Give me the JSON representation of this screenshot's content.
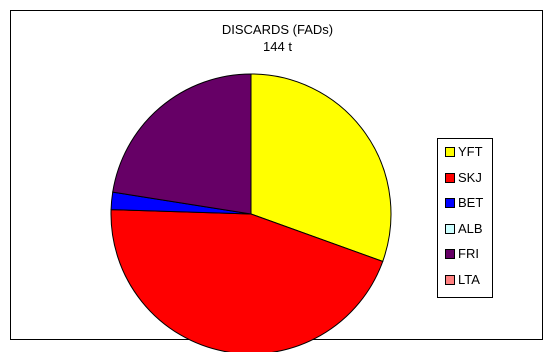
{
  "chart_data": {
    "type": "pie",
    "title": "DISCARDS (FADs)",
    "subtitle": "144 t",
    "legend_position": "right",
    "slices": [
      {
        "label": "YFT",
        "value": 30.5,
        "color": "#ffff00"
      },
      {
        "label": "SKJ",
        "value": 45.0,
        "color": "#ff0000"
      },
      {
        "label": "BET",
        "value": 2.0,
        "color": "#0000ff"
      },
      {
        "label": "ALB",
        "value": 0.0,
        "color": "#ccffff"
      },
      {
        "label": "FRI",
        "value": 22.5,
        "color": "#660066"
      },
      {
        "label": "LTA",
        "value": 0.0,
        "color": "#ff8080"
      }
    ]
  }
}
